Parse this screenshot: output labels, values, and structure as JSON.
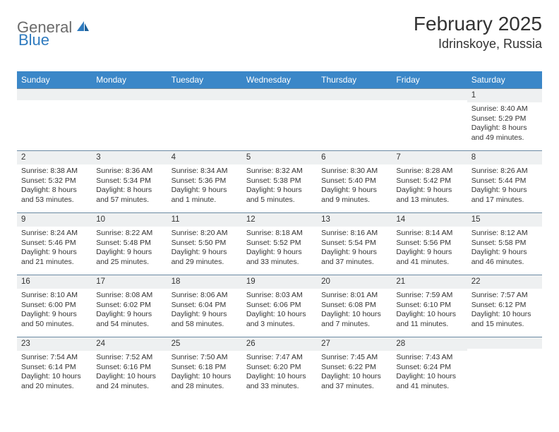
{
  "brand": {
    "part1": "General",
    "part2": "Blue"
  },
  "title": "February 2025",
  "location": "Idrinskoye, Russia",
  "colors": {
    "header_bg": "#3b87c8",
    "header_text": "#ffffff",
    "daynum_bg": "#eef0f1",
    "row_border": "#6b8aa3",
    "body_text": "#333333",
    "logo_gray": "#6b6b6b",
    "logo_blue": "#2f7bbf",
    "page_bg": "#ffffff"
  },
  "weekdays": [
    "Sunday",
    "Monday",
    "Tuesday",
    "Wednesday",
    "Thursday",
    "Friday",
    "Saturday"
  ],
  "weeks": [
    [
      {
        "n": "",
        "lines": [
          "",
          "",
          "",
          ""
        ]
      },
      {
        "n": "",
        "lines": [
          "",
          "",
          "",
          ""
        ]
      },
      {
        "n": "",
        "lines": [
          "",
          "",
          "",
          ""
        ]
      },
      {
        "n": "",
        "lines": [
          "",
          "",
          "",
          ""
        ]
      },
      {
        "n": "",
        "lines": [
          "",
          "",
          "",
          ""
        ]
      },
      {
        "n": "",
        "lines": [
          "",
          "",
          "",
          ""
        ]
      },
      {
        "n": "1",
        "lines": [
          "Sunrise: 8:40 AM",
          "Sunset: 5:29 PM",
          "Daylight: 8 hours",
          "and 49 minutes."
        ]
      }
    ],
    [
      {
        "n": "2",
        "lines": [
          "Sunrise: 8:38 AM",
          "Sunset: 5:32 PM",
          "Daylight: 8 hours",
          "and 53 minutes."
        ]
      },
      {
        "n": "3",
        "lines": [
          "Sunrise: 8:36 AM",
          "Sunset: 5:34 PM",
          "Daylight: 8 hours",
          "and 57 minutes."
        ]
      },
      {
        "n": "4",
        "lines": [
          "Sunrise: 8:34 AM",
          "Sunset: 5:36 PM",
          "Daylight: 9 hours",
          "and 1 minute."
        ]
      },
      {
        "n": "5",
        "lines": [
          "Sunrise: 8:32 AM",
          "Sunset: 5:38 PM",
          "Daylight: 9 hours",
          "and 5 minutes."
        ]
      },
      {
        "n": "6",
        "lines": [
          "Sunrise: 8:30 AM",
          "Sunset: 5:40 PM",
          "Daylight: 9 hours",
          "and 9 minutes."
        ]
      },
      {
        "n": "7",
        "lines": [
          "Sunrise: 8:28 AM",
          "Sunset: 5:42 PM",
          "Daylight: 9 hours",
          "and 13 minutes."
        ]
      },
      {
        "n": "8",
        "lines": [
          "Sunrise: 8:26 AM",
          "Sunset: 5:44 PM",
          "Daylight: 9 hours",
          "and 17 minutes."
        ]
      }
    ],
    [
      {
        "n": "9",
        "lines": [
          "Sunrise: 8:24 AM",
          "Sunset: 5:46 PM",
          "Daylight: 9 hours",
          "and 21 minutes."
        ]
      },
      {
        "n": "10",
        "lines": [
          "Sunrise: 8:22 AM",
          "Sunset: 5:48 PM",
          "Daylight: 9 hours",
          "and 25 minutes."
        ]
      },
      {
        "n": "11",
        "lines": [
          "Sunrise: 8:20 AM",
          "Sunset: 5:50 PM",
          "Daylight: 9 hours",
          "and 29 minutes."
        ]
      },
      {
        "n": "12",
        "lines": [
          "Sunrise: 8:18 AM",
          "Sunset: 5:52 PM",
          "Daylight: 9 hours",
          "and 33 minutes."
        ]
      },
      {
        "n": "13",
        "lines": [
          "Sunrise: 8:16 AM",
          "Sunset: 5:54 PM",
          "Daylight: 9 hours",
          "and 37 minutes."
        ]
      },
      {
        "n": "14",
        "lines": [
          "Sunrise: 8:14 AM",
          "Sunset: 5:56 PM",
          "Daylight: 9 hours",
          "and 41 minutes."
        ]
      },
      {
        "n": "15",
        "lines": [
          "Sunrise: 8:12 AM",
          "Sunset: 5:58 PM",
          "Daylight: 9 hours",
          "and 46 minutes."
        ]
      }
    ],
    [
      {
        "n": "16",
        "lines": [
          "Sunrise: 8:10 AM",
          "Sunset: 6:00 PM",
          "Daylight: 9 hours",
          "and 50 minutes."
        ]
      },
      {
        "n": "17",
        "lines": [
          "Sunrise: 8:08 AM",
          "Sunset: 6:02 PM",
          "Daylight: 9 hours",
          "and 54 minutes."
        ]
      },
      {
        "n": "18",
        "lines": [
          "Sunrise: 8:06 AM",
          "Sunset: 6:04 PM",
          "Daylight: 9 hours",
          "and 58 minutes."
        ]
      },
      {
        "n": "19",
        "lines": [
          "Sunrise: 8:03 AM",
          "Sunset: 6:06 PM",
          "Daylight: 10 hours",
          "and 3 minutes."
        ]
      },
      {
        "n": "20",
        "lines": [
          "Sunrise: 8:01 AM",
          "Sunset: 6:08 PM",
          "Daylight: 10 hours",
          "and 7 minutes."
        ]
      },
      {
        "n": "21",
        "lines": [
          "Sunrise: 7:59 AM",
          "Sunset: 6:10 PM",
          "Daylight: 10 hours",
          "and 11 minutes."
        ]
      },
      {
        "n": "22",
        "lines": [
          "Sunrise: 7:57 AM",
          "Sunset: 6:12 PM",
          "Daylight: 10 hours",
          "and 15 minutes."
        ]
      }
    ],
    [
      {
        "n": "23",
        "lines": [
          "Sunrise: 7:54 AM",
          "Sunset: 6:14 PM",
          "Daylight: 10 hours",
          "and 20 minutes."
        ]
      },
      {
        "n": "24",
        "lines": [
          "Sunrise: 7:52 AM",
          "Sunset: 6:16 PM",
          "Daylight: 10 hours",
          "and 24 minutes."
        ]
      },
      {
        "n": "25",
        "lines": [
          "Sunrise: 7:50 AM",
          "Sunset: 6:18 PM",
          "Daylight: 10 hours",
          "and 28 minutes."
        ]
      },
      {
        "n": "26",
        "lines": [
          "Sunrise: 7:47 AM",
          "Sunset: 6:20 PM",
          "Daylight: 10 hours",
          "and 33 minutes."
        ]
      },
      {
        "n": "27",
        "lines": [
          "Sunrise: 7:45 AM",
          "Sunset: 6:22 PM",
          "Daylight: 10 hours",
          "and 37 minutes."
        ]
      },
      {
        "n": "28",
        "lines": [
          "Sunrise: 7:43 AM",
          "Sunset: 6:24 PM",
          "Daylight: 10 hours",
          "and 41 minutes."
        ]
      },
      {
        "n": "",
        "lines": [
          "",
          "",
          "",
          ""
        ]
      }
    ]
  ]
}
